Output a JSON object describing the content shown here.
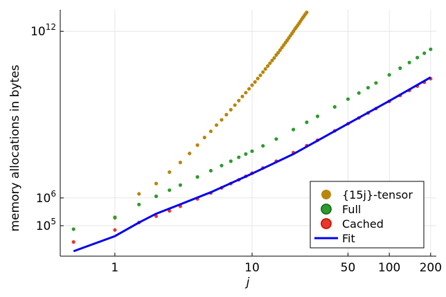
{
  "chart_data": {
    "type": "scatter",
    "xscale": "log",
    "yscale": "log",
    "xlabel": "j",
    "ylabel": "memory allocations in bytes",
    "xlim": [
      0.4,
      220
    ],
    "ylim": [
      8000,
      6000000000000
    ],
    "x_ticks": [
      {
        "value": 1,
        "label": "1"
      },
      {
        "value": 10,
        "label": "10"
      },
      {
        "value": 50,
        "label": "50"
      },
      {
        "value": 100,
        "label": "100"
      },
      {
        "value": 200,
        "label": "200"
      }
    ],
    "y_ticks": [
      {
        "value": 100000,
        "base": "10",
        "exp": "5"
      },
      {
        "value": 1000000,
        "base": "10",
        "exp": "6"
      },
      {
        "value": 1000000000000,
        "base": "10",
        "exp": "12"
      }
    ],
    "grid": true,
    "legend_position": "bottom-right",
    "series": [
      {
        "name": "{15j}-tensor",
        "kind": "scatter",
        "color": "#b8860b",
        "x": [
          0.5,
          1,
          1.5,
          2,
          2.5,
          3,
          3.5,
          4,
          4.5,
          5,
          5.5,
          6,
          6.5,
          7,
          7.5,
          8,
          8.5,
          9,
          9.5,
          10,
          10.5,
          11,
          11.5,
          12,
          12.5,
          13,
          13.5,
          14,
          14.5,
          15,
          15.5,
          16,
          16.5,
          17,
          17.5,
          18,
          18.5,
          19,
          19.5,
          20,
          20.5,
          21,
          21.5,
          22,
          22.5,
          23,
          23.5,
          24,
          24.5,
          25
        ],
        "y": [
          null,
          190000,
          1400000,
          3300000,
          8500000,
          19000000,
          40000000,
          80000000,
          150000000,
          250000000,
          420000000,
          650000000,
          1000000000,
          1500000000,
          2200000000,
          3200000000,
          4500000000,
          6200000000,
          8500000000,
          11500000000,
          15000000000,
          20000000000,
          26000000000,
          34000000000,
          44000000000,
          56000000000,
          71000000000,
          89000000000,
          110000000000,
          140000000000,
          170000000000,
          210000000000,
          260000000000,
          320000000000,
          390000000000,
          470000000000,
          570000000000,
          690000000000,
          830000000000,
          990000000000,
          1200000000000,
          1400000000000,
          1650000000000,
          1950000000000,
          2300000000000,
          2700000000000,
          3150000000000,
          3650000000000,
          4200000000000,
          4800000000000
        ]
      },
      {
        "name": "Full",
        "kind": "scatter",
        "color": "#2e9b2e",
        "x": [
          0.5,
          1,
          1.5,
          2,
          2.5,
          3,
          4,
          5,
          6,
          7,
          8,
          9,
          10,
          12,
          15,
          20,
          25,
          30,
          40,
          50,
          60,
          70,
          80,
          100,
          120,
          140,
          160,
          180,
          200
        ],
        "y": [
          75000,
          200000,
          580000,
          1150000,
          1900000,
          2900000,
          5700000,
          9600000,
          14600000,
          21000000,
          29000000,
          38000000,
          48000000,
          75000000,
          132000000,
          290000000,
          530000000,
          870000000,
          1900000000,
          3600000000,
          6000000000,
          9300000000,
          13800000000,
          27000000000,
          47000000000,
          75000000000,
          113000000000,
          162000000000,
          225000000000
        ]
      },
      {
        "name": "Cached",
        "kind": "scatter",
        "color": "#e8382e",
        "x": [
          0.5,
          1,
          1.5,
          2,
          2.5,
          3,
          4,
          5,
          6,
          7,
          8,
          9,
          10,
          12,
          15,
          20,
          25,
          30,
          40,
          50,
          60,
          70,
          80,
          100,
          120,
          140,
          160,
          180,
          200
        ],
        "y": [
          26000,
          70000,
          130000,
          220000,
          340000,
          500000,
          920000,
          1500000,
          2300000,
          3300000,
          4500000,
          6000000,
          7800000,
          12000000,
          21000000,
          43000000,
          76000000,
          120000000,
          260000000,
          470000000,
          760000000,
          1150000000,
          1650000000,
          3000000000,
          4900000000,
          7400000000,
          10600000000,
          14600000000,
          19600000000
        ]
      },
      {
        "name": "Fit",
        "kind": "line",
        "color": "#0000ee",
        "x": [
          0.5,
          1,
          1.5,
          2,
          3,
          5,
          10,
          20,
          50,
          100,
          200
        ],
        "y": [
          12000,
          42000,
          130000,
          270000,
          590000,
          1600000,
          7500000,
          38000000,
          470000000,
          3100000000,
          22000000000
        ]
      }
    ]
  }
}
